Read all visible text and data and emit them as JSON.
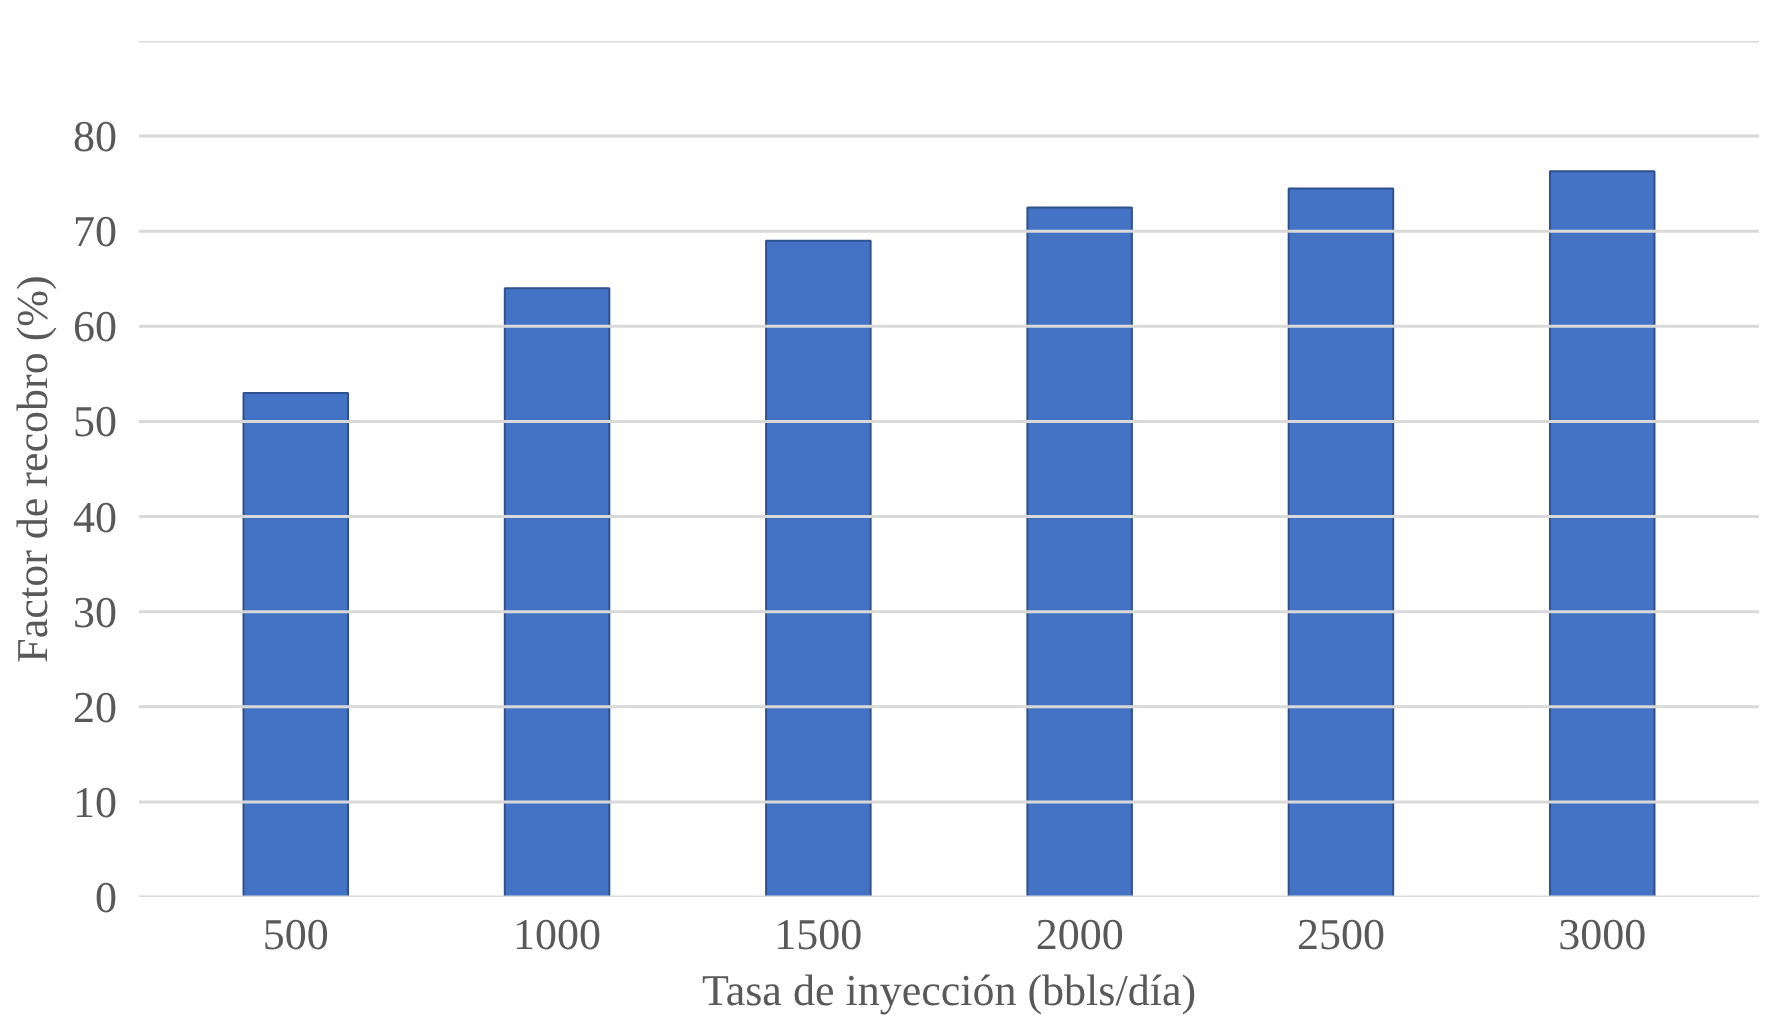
{
  "chart_data": {
    "type": "bar",
    "xlabel": "Tasa de inyección (bbls/día)",
    "ylabel": "Factor de recobro (%)",
    "categories": [
      "500",
      "1000",
      "1500",
      "2000",
      "2500",
      "3000"
    ],
    "values": [
      53,
      64,
      69,
      72.5,
      74.5,
      76.3
    ],
    "color": "#4472c4",
    "ylim": [
      0,
      90
    ],
    "yticks": [
      0,
      10,
      20,
      30,
      40,
      50,
      60,
      70,
      80,
      {
        "value": 90,
        "label": null
      }
    ],
    "grid": "y"
  }
}
